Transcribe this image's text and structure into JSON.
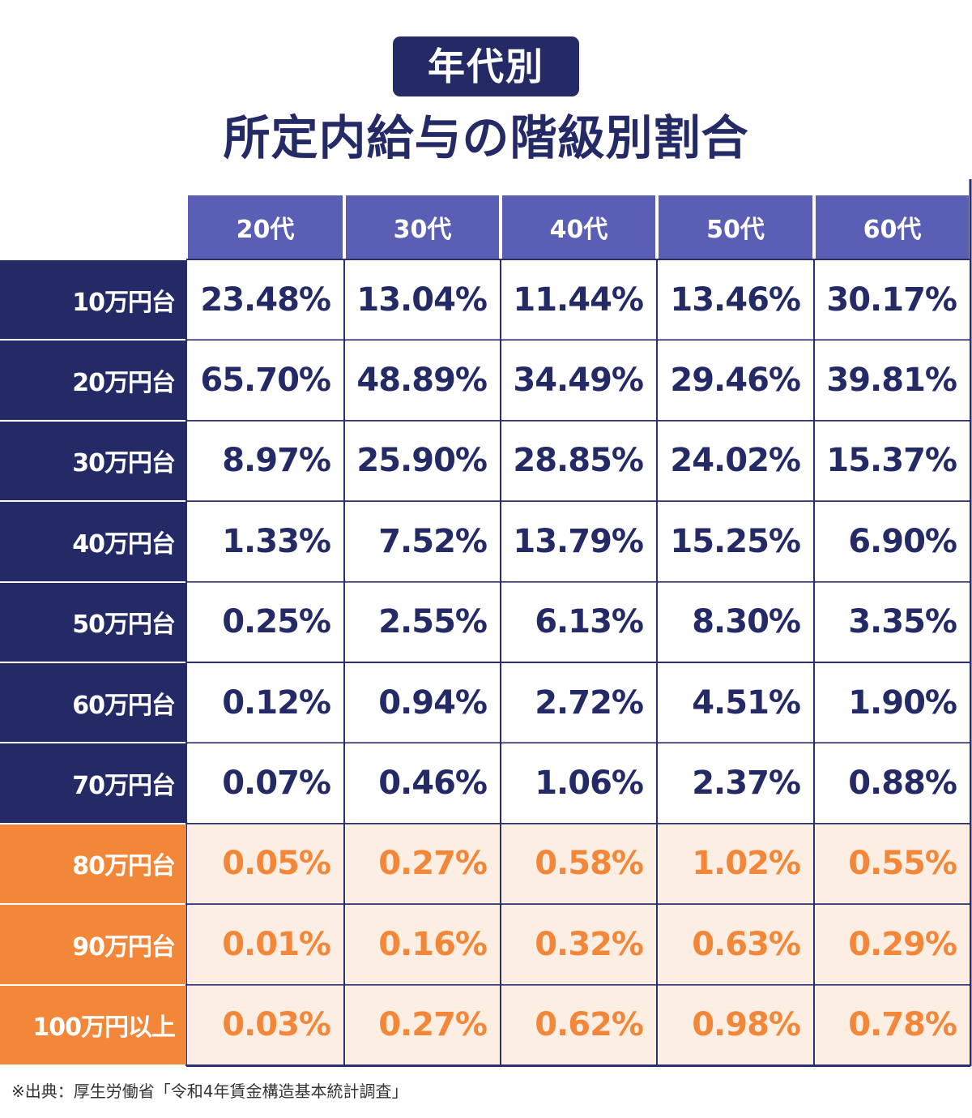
{
  "title": {
    "badge": "年代別",
    "main": "所定内給与の階級別割合"
  },
  "chart_data": {
    "type": "table",
    "columns": [
      "20代",
      "30代",
      "40代",
      "50代",
      "60代"
    ],
    "rows": [
      {
        "label": "10万円台",
        "values": [
          "23.48%",
          "13.04%",
          "11.44%",
          "13.46%",
          "30.17%"
        ],
        "highlight": false
      },
      {
        "label": "20万円台",
        "values": [
          "65.70%",
          "48.89%",
          "34.49%",
          "29.46%",
          "39.81%"
        ],
        "highlight": false
      },
      {
        "label": "30万円台",
        "values": [
          "8.97%",
          "25.90%",
          "28.85%",
          "24.02%",
          "15.37%"
        ],
        "highlight": false
      },
      {
        "label": "40万円台",
        "values": [
          "1.33%",
          "7.52%",
          "13.79%",
          "15.25%",
          "6.90%"
        ],
        "highlight": false
      },
      {
        "label": "50万円台",
        "values": [
          "0.25%",
          "2.55%",
          "6.13%",
          "8.30%",
          "3.35%"
        ],
        "highlight": false
      },
      {
        "label": "60万円台",
        "values": [
          "0.12%",
          "0.94%",
          "2.72%",
          "4.51%",
          "1.90%"
        ],
        "highlight": false
      },
      {
        "label": "70万円台",
        "values": [
          "0.07%",
          "0.46%",
          "1.06%",
          "2.37%",
          "0.88%"
        ],
        "highlight": false
      },
      {
        "label": "80万円台",
        "values": [
          "0.05%",
          "0.27%",
          "0.58%",
          "1.02%",
          "0.55%"
        ],
        "highlight": true
      },
      {
        "label": "90万円台",
        "values": [
          "0.01%",
          "0.16%",
          "0.32%",
          "0.63%",
          "0.29%"
        ],
        "highlight": true
      },
      {
        "label": "100万円以上",
        "values": [
          "0.03%",
          "0.27%",
          "0.62%",
          "0.98%",
          "0.78%"
        ],
        "highlight": true
      }
    ]
  },
  "colors": {
    "navy": "#232a66",
    "column_header": "#5a5fb5",
    "orange": "#f2873a",
    "orange_light": "#fdeee3",
    "border": "#2b2f6e"
  },
  "footnote": "※出典：厚生労働省「令和4年賃金構造基本統計調査」"
}
